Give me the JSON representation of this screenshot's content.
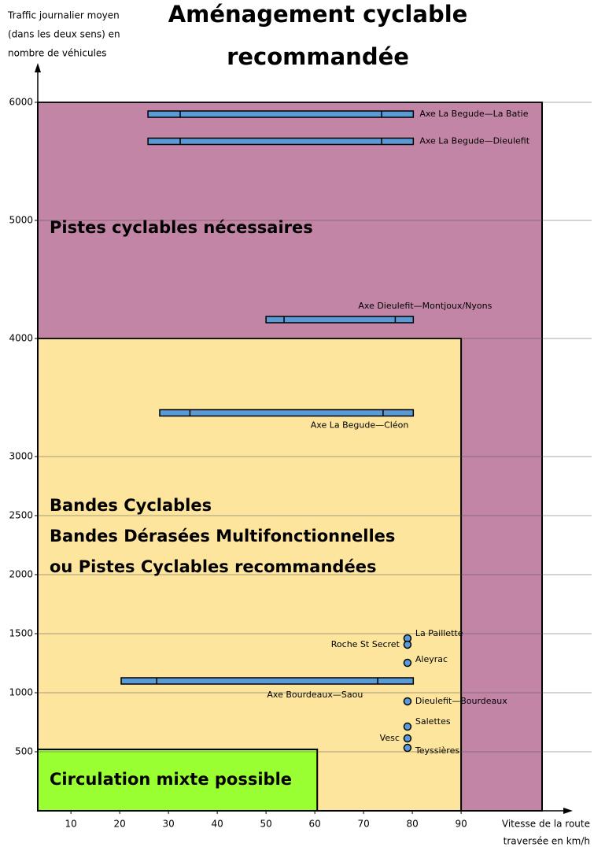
{
  "chart_data": {
    "type": "range",
    "title": [
      "Aménagement cyclable",
      "recommandée"
    ],
    "y_label": [
      "Traffic journalier moyen",
      "(dans les deux sens) en",
      "nombre de véhicules"
    ],
    "x_label": [
      "Vitesse de la route",
      "traversée en km/h"
    ],
    "xlim": [
      3.2,
      111.6
    ],
    "ylim": [
      0,
      6000
    ],
    "xticks": [
      10,
      20,
      30,
      40,
      50,
      60,
      70,
      80,
      90
    ],
    "yticks": [
      500,
      1000,
      1500,
      2000,
      2500,
      3000,
      4000,
      5000,
      6000
    ],
    "grid": true,
    "regions": [
      {
        "label": [
          "Pistes cyclables nécessaires"
        ],
        "x_end": 106.6,
        "y_end": 6000,
        "color": "#c285a5"
      },
      {
        "label": [
          "Bandes Cyclables",
          "Bandes Dérasées Multifonctionnelles",
          "ou Pistes Cyclables recommandées"
        ],
        "x_end": 90,
        "y_end": 4000,
        "color": "#fde59d"
      },
      {
        "label": [
          "Circulation mixte possible"
        ],
        "x_end": 60.5,
        "y_end": 520,
        "color": "#99ff33"
      }
    ],
    "ranges": [
      {
        "name": "Axe La Begude—La Batie",
        "value": 5900,
        "x_start": 25.8,
        "x_end": 80.2,
        "dividers": [
          32.4,
          73.7
        ]
      },
      {
        "name": "Axe La Begude—Dieulefit",
        "value": 5670,
        "x_start": 25.8,
        "x_end": 80.2,
        "dividers": [
          32.4,
          73.7
        ]
      },
      {
        "name": "Axe Dieulefit—Montjoux/Nyons",
        "value": 4160,
        "x_start": 50,
        "x_end": 80.2,
        "dividers": [
          53.7,
          76.5
        ]
      },
      {
        "name": "Axe La Begude—Cléon",
        "value": 3370,
        "x_start": 28.2,
        "x_end": 80.2,
        "dividers": [
          34.4,
          74
        ]
      },
      {
        "name": "Axe Bourdeaux—Saou",
        "value": 1100,
        "x_start": 20.3,
        "x_end": 80.2,
        "dividers": [
          27.6,
          72.9
        ]
      }
    ],
    "range_color": "#5b9bd5",
    "points": {
      "names": [
        "La Paillette",
        "Roche St Secret",
        "Aleyrac",
        "Dieulefit—Bourdeaux",
        "Salettes",
        "Vesc",
        "Teyssières"
      ],
      "x": [
        79,
        79,
        79,
        79,
        79,
        79,
        79
      ],
      "values": [
        1460,
        1407,
        1253,
        927,
        713,
        613,
        533
      ],
      "color": "#5b9bd5"
    }
  }
}
